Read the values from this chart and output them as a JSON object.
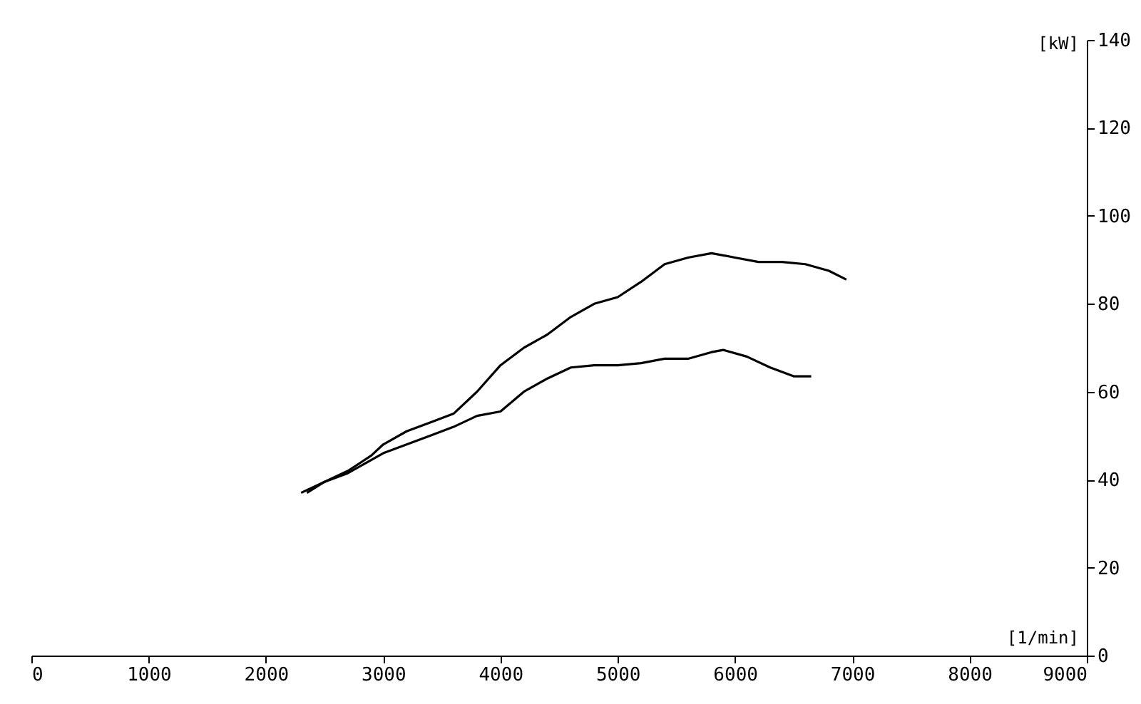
{
  "chart_data": {
    "type": "line",
    "xlabel": "[1/min]",
    "ylabel": "[kW]",
    "xlim": [
      0,
      9000
    ],
    "xticks": [
      0,
      1000,
      2000,
      3000,
      4000,
      5000,
      6000,
      7000,
      8000,
      9000
    ],
    "ylim": [
      0,
      140
    ],
    "yticks": [
      0,
      20,
      40,
      60,
      80,
      100,
      120,
      140
    ],
    "grid": false,
    "legend": false,
    "marker": "none",
    "line_style": "solid",
    "series": [
      {
        "color": "#000000",
        "x": [
          2350,
          2500,
          2700,
          2900,
          3000,
          3200,
          3400,
          3600,
          3800,
          4000,
          4200,
          4400,
          4600,
          4800,
          5000,
          5200,
          5400,
          5600,
          5800,
          6000,
          6200,
          6400,
          6600,
          6800,
          6950
        ],
        "values": [
          37,
          39.5,
          42,
          45.5,
          48,
          51,
          53,
          55,
          60,
          66,
          70,
          73,
          77,
          80,
          81.5,
          85,
          89,
          90.5,
          91.5,
          90.5,
          89.5,
          89.5,
          89,
          87.5,
          85.5
        ]
      },
      {
        "color": "#000000",
        "x": [
          2300,
          2500,
          2700,
          3000,
          3200,
          3400,
          3600,
          3800,
          4000,
          4200,
          4400,
          4600,
          4800,
          5000,
          5200,
          5400,
          5600,
          5800,
          5900,
          6100,
          6300,
          6500,
          6650
        ],
        "values": [
          37,
          39.5,
          41.5,
          46,
          48,
          50,
          52,
          54.5,
          55.5,
          60,
          63,
          65.5,
          66,
          66,
          66.5,
          67.5,
          67.5,
          69,
          69.5,
          68,
          65.5,
          63.5,
          63.5
        ]
      }
    ]
  }
}
